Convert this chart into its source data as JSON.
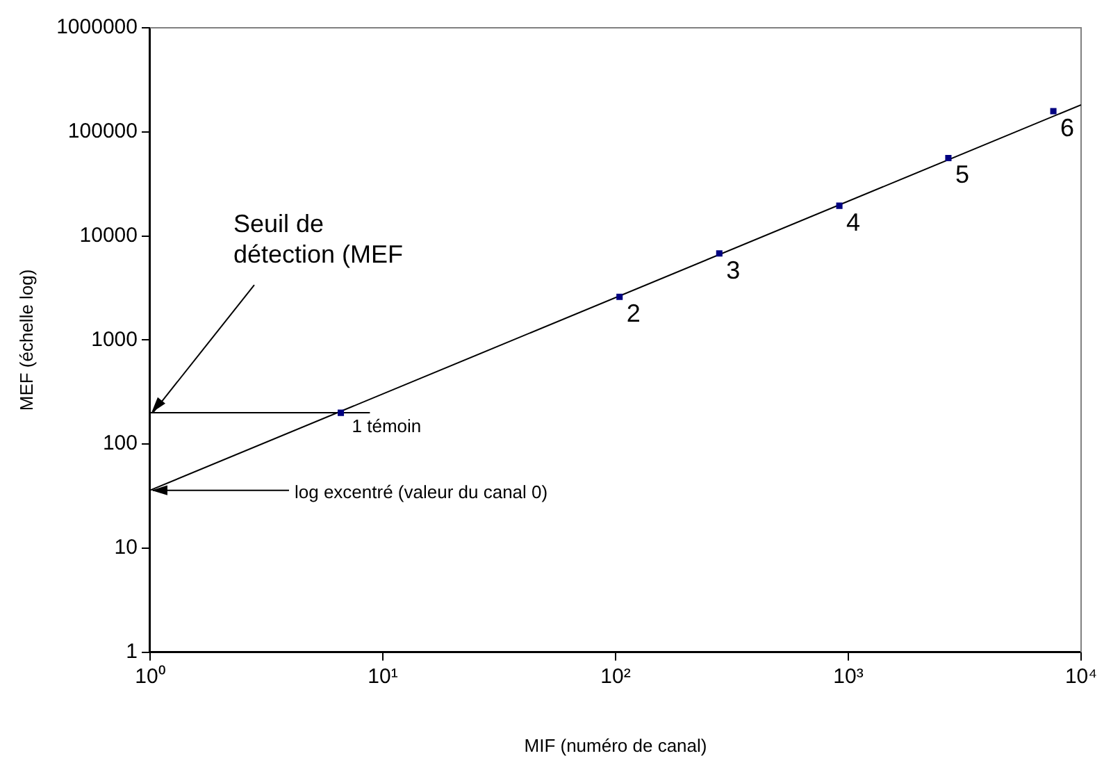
{
  "chart_data": {
    "type": "scatter",
    "xlabel": "MIF (numéro de canal)",
    "ylabel": "MEF (échelle log)",
    "log": "xy",
    "xlim": [
      1,
      10000
    ],
    "xticks": [
      {
        "value": 1,
        "label": "10⁰"
      },
      {
        "value": 10,
        "label": "10¹"
      },
      {
        "value": 100,
        "label": "10²"
      },
      {
        "value": 1000,
        "label": "10³"
      },
      {
        "value": 10000,
        "label": "10⁴"
      }
    ],
    "ylim": [
      1,
      1000000
    ],
    "yticks": [
      1,
      10,
      100,
      1000,
      10000,
      100000,
      1000000
    ],
    "series": [
      {
        "type": "line",
        "marker": "none",
        "color": "#000000",
        "x": [
          1,
          10000
        ],
        "values": [
          36,
          182000
        ]
      },
      {
        "type": "line",
        "marker": "none",
        "color": "#000000",
        "x": [
          1,
          8.8
        ],
        "values": [
          200,
          200
        ]
      },
      {
        "type": "scatter",
        "marker": "square",
        "color": "#000080",
        "x": [
          6.6,
          104,
          279,
          915,
          2690,
          7600
        ],
        "values": [
          200,
          2600,
          6800,
          19500,
          56000,
          158000
        ]
      }
    ],
    "annotations": [
      {
        "text": "Seuil de détection (MEF",
        "x": 1,
        "y": 200
      },
      {
        "text": "log excentré (valeur du canal 0)",
        "x": 1,
        "y": 36
      },
      {
        "text": "1 témoin",
        "x": 6.6,
        "y": 200
      },
      {
        "text": "2",
        "x": 104,
        "y": 2600
      },
      {
        "text": "3",
        "x": 279,
        "y": 6800
      },
      {
        "text": "4",
        "x": 915,
        "y": 19500
      },
      {
        "text": "5",
        "x": 2690,
        "y": 56000
      },
      {
        "text": "6",
        "x": 7600,
        "y": 158000
      }
    ]
  }
}
